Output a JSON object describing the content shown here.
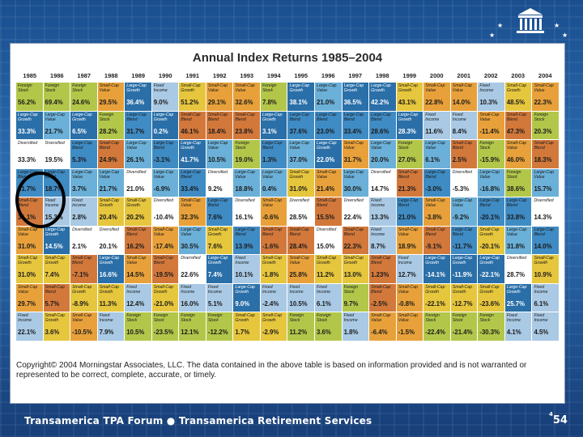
{
  "title": "Annual Index Returns 1985–2004",
  "years": [
    "1985",
    "1986",
    "1987",
    "1988",
    "1989",
    "1990",
    "1991",
    "1992",
    "1993",
    "1994",
    "1995",
    "1996",
    "1997",
    "1998",
    "1999",
    "2000",
    "2001",
    "2002",
    "2003",
    "2004"
  ],
  "legend_classes": {
    "Large-Cap Value": "lcv",
    "Large-Cap Blend": "lcb",
    "Large-Cap Growth": "lcg",
    "Small-Cap Value": "scv",
    "Small-Cap Blend": "scb",
    "Small-Cap Growth": "scg",
    "Foreign Stock": "fs",
    "Fixed Income": "fi",
    "Diversified": "dv"
  },
  "colors": {
    "lcv": "#6bb0d8",
    "lcb": "#3f8bc4",
    "lcg": "#2a6fa8",
    "scv": "#e8a13a",
    "scb": "#d2783b",
    "scg": "#e6c63d",
    "fs": "#b2c74a",
    "fi": "#a9c9e4",
    "dv": "#ffffff"
  },
  "rows": [
    [
      [
        "Foreign Stock",
        "56.2%"
      ],
      [
        "Foreign Stock",
        "69.4%"
      ],
      [
        "Foreign Stock",
        "24.6%"
      ],
      [
        "Small-Cap Value",
        "29.5%"
      ],
      [
        "Large-Cap Growth",
        "36.4%"
      ],
      [
        "Fixed Income",
        "9.0%"
      ],
      [
        "Small-Cap Growth",
        "51.2%"
      ],
      [
        "Small-Cap Value",
        "29.1%"
      ],
      [
        "Small-Cap Value",
        "32.6%"
      ],
      [
        "Foreign Stock",
        "7.8%"
      ],
      [
        "Large-Cap Growth",
        "38.1%"
      ],
      [
        "Large-Cap Value",
        "21.0%"
      ],
      [
        "Large-Cap Growth",
        "36.5%"
      ],
      [
        "Large-Cap Growth",
        "42.2%"
      ],
      [
        "Small-Cap Growth",
        "43.1%"
      ],
      [
        "Small-Cap Value",
        "22.8%"
      ],
      [
        "Small-Cap Value",
        "14.0%"
      ],
      [
        "Fixed Income",
        "10.3%"
      ],
      [
        "Small-Cap Growth",
        "48.5%"
      ],
      [
        "Small-Cap Value",
        "22.3%"
      ]
    ],
    [
      [
        "Large-Cap Growth",
        "33.3%"
      ],
      [
        "Large-Cap Value",
        "21.7%"
      ],
      [
        "Large-Cap Growth",
        "6.5%"
      ],
      [
        "Foreign Stock",
        "28.2%"
      ],
      [
        "Large-Cap Blend",
        "31.7%"
      ],
      [
        "Large-Cap Growth",
        "0.2%"
      ],
      [
        "Small-Cap Blend",
        "46.1%"
      ],
      [
        "Small-Cap Blend",
        "18.4%"
      ],
      [
        "Small-Cap Blend",
        "23.8%"
      ],
      [
        "Large-Cap Growth",
        "3.1%"
      ],
      [
        "Large-Cap Blend",
        "37.6%"
      ],
      [
        "Large-Cap Blend",
        "23.0%"
      ],
      [
        "Large-Cap Blend",
        "33.4%"
      ],
      [
        "Large-Cap Blend",
        "28.6%"
      ],
      [
        "Large-Cap Growth",
        "28.3%"
      ],
      [
        "Fixed Income",
        "11.6%"
      ],
      [
        "Fixed Income",
        "8.4%"
      ],
      [
        "Small-Cap Value",
        "-11.4%"
      ],
      [
        "Small-Cap Blend",
        "47.3%"
      ],
      [
        "Foreign Stock",
        "20.3%"
      ]
    ],
    [
      [
        "Diversified",
        "33.3%"
      ],
      [
        "Diversified",
        "19.5%"
      ],
      [
        "Large-Cap Blend",
        "5.3%"
      ],
      [
        "Small-Cap Blend",
        "24.9%"
      ],
      [
        "Large-Cap Value",
        "26.1%"
      ],
      [
        "Large-Cap Blend",
        "-3.1%"
      ],
      [
        "Large-Cap Growth",
        "41.7%"
      ],
      [
        "Large-Cap Value",
        "10.5%"
      ],
      [
        "Foreign Stock",
        "19.0%"
      ],
      [
        "Large-Cap Blend",
        "1.3%"
      ],
      [
        "Large-Cap Value",
        "37.0%"
      ],
      [
        "Large-Cap Growth",
        "22.0%"
      ],
      [
        "Small-Cap Value",
        "31.7%"
      ],
      [
        "Large-Cap Value",
        "20.0%"
      ],
      [
        "Foreign Stock",
        "27.0%"
      ],
      [
        "Large-Cap Value",
        "6.1%"
      ],
      [
        "Small-Cap Blend",
        "2.5%"
      ],
      [
        "Foreign Stock",
        "-15.9%"
      ],
      [
        "Small-Cap Value",
        "46.0%"
      ],
      [
        "Small-Cap Blend",
        "18.3%"
      ]
    ],
    [
      [
        "Large-Cap Blend",
        "31.7%"
      ],
      [
        "Large-Cap Blend",
        "18.7%"
      ],
      [
        "Large-Cap Value",
        "3.7%"
      ],
      [
        "Large-Cap Value",
        "21.7%"
      ],
      [
        "Diversified",
        "21.0%"
      ],
      [
        "Large-Cap Value",
        "-6.9%"
      ],
      [
        "Large-Cap Blend",
        "33.4%"
      ],
      [
        "Diversified",
        "9.2%"
      ],
      [
        "Large-Cap Value",
        "18.8%"
      ],
      [
        "Large-Cap Value",
        "0.4%"
      ],
      [
        "Small-Cap Growth",
        "31.0%"
      ],
      [
        "Small-Cap Value",
        "21.4%"
      ],
      [
        "Large-Cap Value",
        "30.0%"
      ],
      [
        "Diversified",
        "14.7%"
      ],
      [
        "Small-Cap Blend",
        "21.3%"
      ],
      [
        "Large-Cap Blend",
        "-3.0%"
      ],
      [
        "Diversified",
        "-5.3%"
      ],
      [
        "Large-Cap Value",
        "-16.8%"
      ],
      [
        "Foreign Stock",
        "38.6%"
      ],
      [
        "Large-Cap Value",
        "15.7%"
      ]
    ],
    [
      [
        "Small-Cap Blend",
        "31.1%"
      ],
      [
        "Fixed Income",
        "15.3%"
      ],
      [
        "Fixed Income",
        "2.8%"
      ],
      [
        "Small-Cap Growth",
        "20.4%"
      ],
      [
        "Small-Cap Growth",
        "20.2%"
      ],
      [
        "Diversified",
        "-10.4%"
      ],
      [
        "Small-Cap Value",
        "32.3%"
      ],
      [
        "Large-Cap Blend",
        "7.6%"
      ],
      [
        "Diversified",
        "16.1%"
      ],
      [
        "Small-Cap Value",
        "-0.6%"
      ],
      [
        "Diversified",
        "28.5%"
      ],
      [
        "Small-Cap Blend",
        "15.5%"
      ],
      [
        "Diversified",
        "22.4%"
      ],
      [
        "Fixed Income",
        "13.3%"
      ],
      [
        "Large-Cap Blend",
        "21.0%"
      ],
      [
        "Small-Cap Value",
        "-3.8%"
      ],
      [
        "Large-Cap Value",
        "-9.2%"
      ],
      [
        "Large-Cap Blend",
        "-20.1%"
      ],
      [
        "Large-Cap Blend",
        "33.8%"
      ],
      [
        "Diversified",
        "14.3%"
      ]
    ],
    [
      [
        "Small-Cap Value",
        "31.0%"
      ],
      [
        "Large-Cap Growth",
        "14.5%"
      ],
      [
        "Diversified",
        "2.1%"
      ],
      [
        "Diversified",
        "20.1%"
      ],
      [
        "Small-Cap Blend",
        "16.2%"
      ],
      [
        "Small-Cap Value",
        "-17.4%"
      ],
      [
        "Large-Cap Value",
        "30.5%"
      ],
      [
        "Small-Cap Growth",
        "7.6%"
      ],
      [
        "Large-Cap Blend",
        "13.9%"
      ],
      [
        "Small-Cap Blend",
        "-1.6%"
      ],
      [
        "Small-Cap Blend",
        "28.4%"
      ],
      [
        "Diversified",
        "15.0%"
      ],
      [
        "Small-Cap Blend",
        "22.3%"
      ],
      [
        "Fixed Income",
        "8.7%"
      ],
      [
        "Small-Cap Value",
        "18.9%"
      ],
      [
        "Small-Cap Blend",
        "-9.1%"
      ],
      [
        "Large-Cap Blend",
        "-11.7%"
      ],
      [
        "Small-Cap Growth",
        "-20.1%"
      ],
      [
        "Large-Cap Value",
        "31.8%"
      ],
      [
        "Large-Cap Blend",
        "14.0%"
      ]
    ],
    [
      [
        "Small-Cap Growth",
        "31.0%"
      ],
      [
        "Small-Cap Growth",
        "7.4%"
      ],
      [
        "Small-Cap Blend",
        "-7.1%"
      ],
      [
        "Large-Cap Growth",
        "16.6%"
      ],
      [
        "Small-Cap Value",
        "14.5%"
      ],
      [
        "Small-Cap Blend",
        "-19.5%"
      ],
      [
        "Diversified",
        "22.6%"
      ],
      [
        "Large-Cap Growth",
        "7.4%"
      ],
      [
        "Fixed Income",
        "10.1%"
      ],
      [
        "Small-Cap Growth",
        "-1.8%"
      ],
      [
        "Small-Cap Value",
        "25.8%"
      ],
      [
        "Small-Cap Growth",
        "11.2%"
      ],
      [
        "Small-Cap Growth",
        "13.0%"
      ],
      [
        "Small-Cap Blend",
        "1.23%"
      ],
      [
        "Fixed Income",
        "12.7%"
      ],
      [
        "Large-Cap Growth",
        "-14.1%"
      ],
      [
        "Large-Cap Growth",
        "-11.9%"
      ],
      [
        "Large-Cap Growth",
        "-22.1%"
      ],
      [
        "Diversified",
        "28.7%"
      ],
      [
        "Small-Cap Growth",
        "10.9%"
      ]
    ],
    [
      [
        "Small-Cap Value",
        "29.7%"
      ],
      [
        "Small-Cap Blend",
        "5.7%"
      ],
      [
        "Small-Cap Growth",
        "-8.9%"
      ],
      [
        "Small-Cap Growth",
        "11.3%"
      ],
      [
        "Fixed Income",
        "12.4%"
      ],
      [
        "Small-Cap Growth",
        "-21.0%"
      ],
      [
        "Fixed Income",
        "16.0%"
      ],
      [
        "Fixed Income",
        "5.1%"
      ],
      [
        "Large-Cap Growth",
        "9.0%"
      ],
      [
        "Fixed Income",
        "-2.4%"
      ],
      [
        "Fixed Income",
        "10.5%"
      ],
      [
        "Fixed Income",
        "6.1%"
      ],
      [
        "Foreign Stock",
        "9.7%"
      ],
      [
        "Small-Cap Blend",
        "-2.5%"
      ],
      [
        "Small-Cap Value",
        "-0.8%"
      ],
      [
        "Small-Cap Growth",
        "-22.1%"
      ],
      [
        "Small-Cap Growth",
        "-12.7%"
      ],
      [
        "Small-Cap Growth",
        "-23.6%"
      ],
      [
        "Large-Cap Growth",
        "25.7%"
      ],
      [
        "Fixed Income",
        "6.1%"
      ]
    ],
    [
      [
        "Fixed Income",
        "22.1%"
      ],
      [
        "Small-Cap Growth",
        "3.6%"
      ],
      [
        "Small-Cap Value",
        "-10.5%"
      ],
      [
        "Fixed Income",
        "7.9%"
      ],
      [
        "Foreign Stock",
        "10.5%"
      ],
      [
        "Foreign Stock",
        "-23.5%"
      ],
      [
        "Foreign Stock",
        "12.1%"
      ],
      [
        "Foreign Stock",
        "-12.2%"
      ],
      [
        "Small-Cap Growth",
        "1.7%"
      ],
      [
        "Small-Cap Growth",
        "-2.9%"
      ],
      [
        "Foreign Stock",
        "11.2%"
      ],
      [
        "Foreign Stock",
        "3.6%"
      ],
      [
        "Fixed Income",
        "1.8%"
      ],
      [
        "Small-Cap Value",
        "-6.4%"
      ],
      [
        "Small-Cap Value",
        "-1.5%"
      ],
      [
        "Foreign Stock",
        "-22.4%"
      ],
      [
        "Foreign Stock",
        "-21.4%"
      ],
      [
        "Foreign Stock",
        "-30.3%"
      ],
      [
        "Fixed Income",
        "4.1%"
      ],
      [
        "Fixed Income",
        "4.5%"
      ]
    ]
  ],
  "copyright": "Copyright© 2004 Morningstar Associates, LLC. The data contained in the above table is based on information provided and is not warranted or represented to be correct, complete, accurate, or timely.",
  "footer": "Transamerica TPA Forum  ●  Transamerica Retirement Services",
  "page": {
    "superscript": "4",
    "number": "54"
  }
}
